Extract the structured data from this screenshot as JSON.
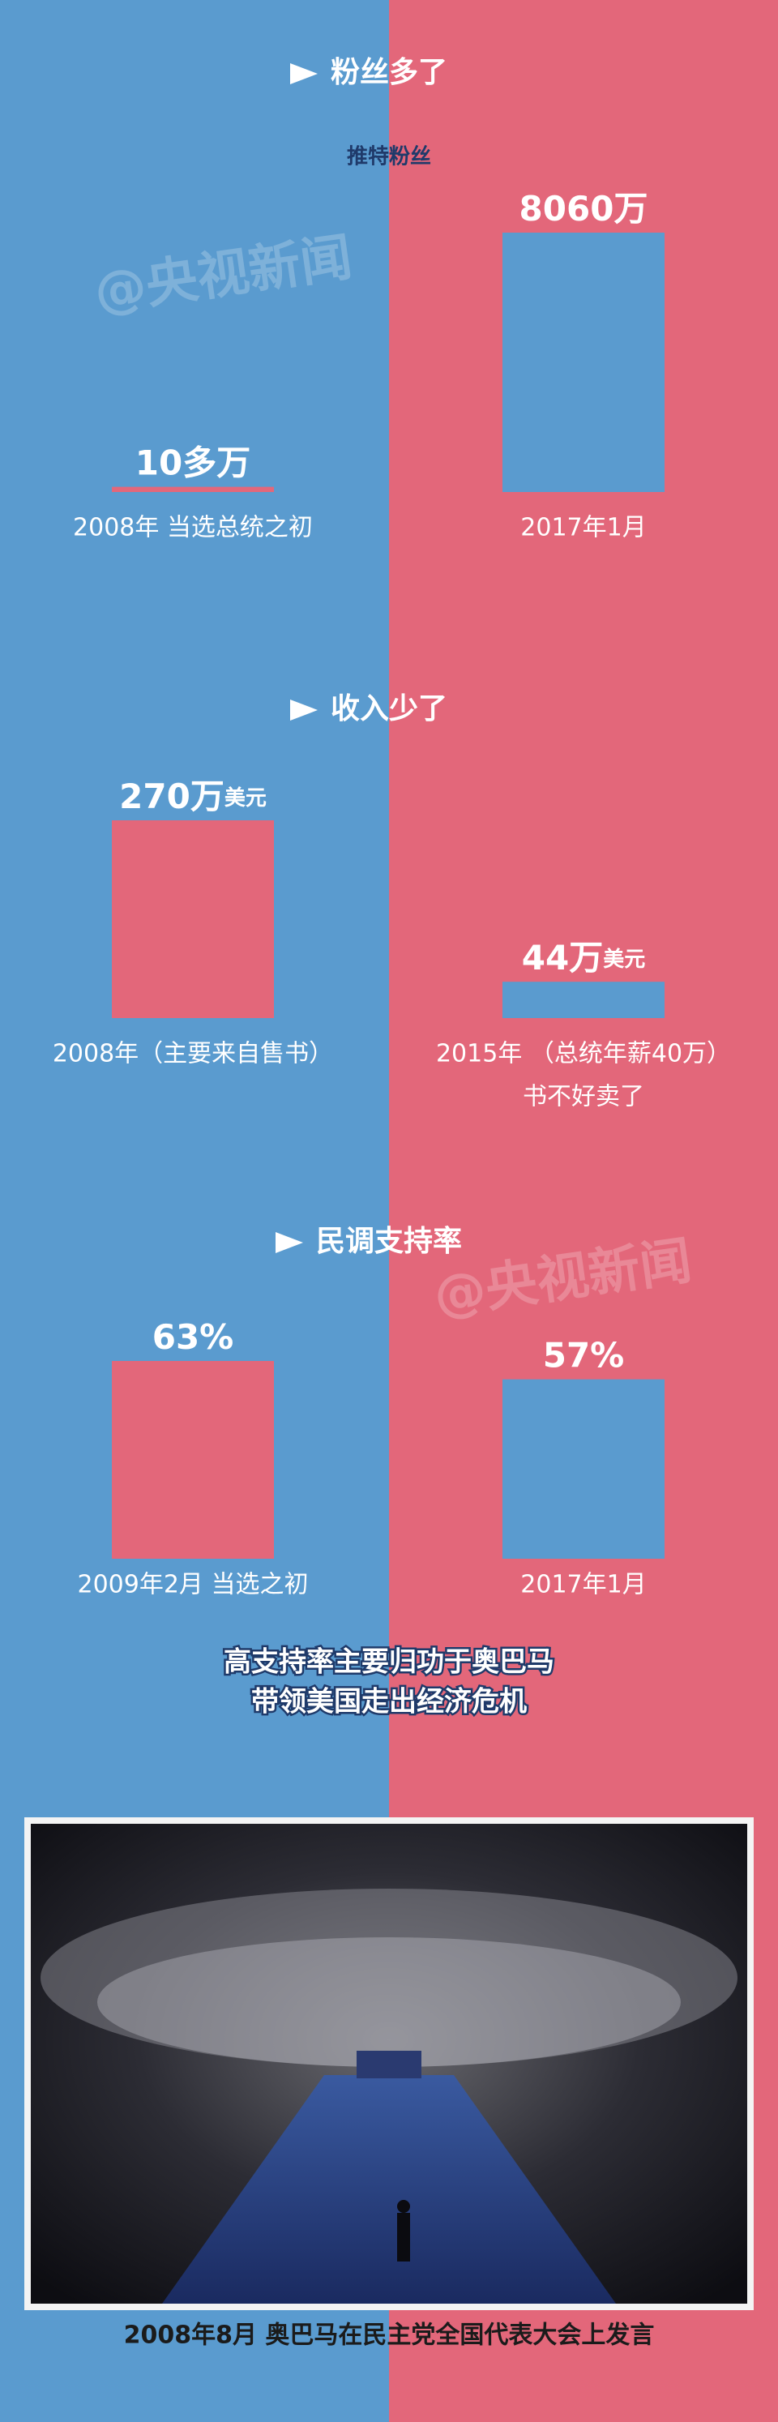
{
  "chart_data": [
    {
      "type": "bar",
      "title": "粉丝多了",
      "subtitle": "推特粉丝",
      "categories": [
        "2008年 当选总统之初",
        "2017年1月"
      ],
      "values": [
        10,
        8060
      ],
      "value_labels": [
        "10多万",
        "8060万"
      ],
      "colors": [
        "#e3677a",
        "#5a9bcf"
      ]
    },
    {
      "type": "bar",
      "title": "收入少了",
      "categories": [
        "2008年（主要来自售书）",
        "2015年 （总统年薪40万）"
      ],
      "values": [
        270,
        44
      ],
      "value_labels": [
        "270万",
        "44万"
      ],
      "value_label_unit": "美元",
      "annotation": "书不好卖了",
      "colors": [
        "#e3677a",
        "#5a9bcf"
      ]
    },
    {
      "type": "bar",
      "title": "民调支持率",
      "categories": [
        "2009年2月 当选之初",
        "2017年1月"
      ],
      "values": [
        63,
        57
      ],
      "value_labels": [
        "63%",
        "57%"
      ],
      "annotation": [
        "高支持率主要归功于奥巴马",
        "带领美国走出经济危机"
      ],
      "colors": [
        "#e3677a",
        "#5a9bcf"
      ]
    }
  ],
  "watermark": "@央视新闻",
  "photo_caption": "2008年8月 奥巴马在民主党全国代表大会上发言"
}
